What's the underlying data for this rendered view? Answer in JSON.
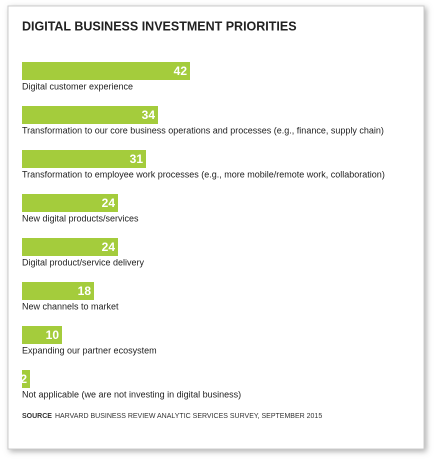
{
  "chart_data": {
    "type": "bar",
    "orientation": "horizontal",
    "title": "DIGITAL BUSINESS INVESTMENT PRIORITIES",
    "categories": [
      "Digital customer experience",
      "Transformation to our core business operations and processes (e.g., finance, supply chain)",
      "Transformation to employee work processes (e.g., more mobile/remote work, collaboration)",
      "New digital products/services",
      "Digital product/service delivery",
      "New channels to market",
      "Expanding our partner ecosystem",
      "Not applicable (we are not investing in digital business)"
    ],
    "values": [
      42,
      34,
      31,
      24,
      24,
      18,
      10,
      2
    ],
    "color": "#a4cc3c",
    "source_label": "SOURCE",
    "source": "HARVARD BUSINESS REVIEW ANALYTIC SERVICES SURVEY, SEPTEMBER 2015"
  }
}
